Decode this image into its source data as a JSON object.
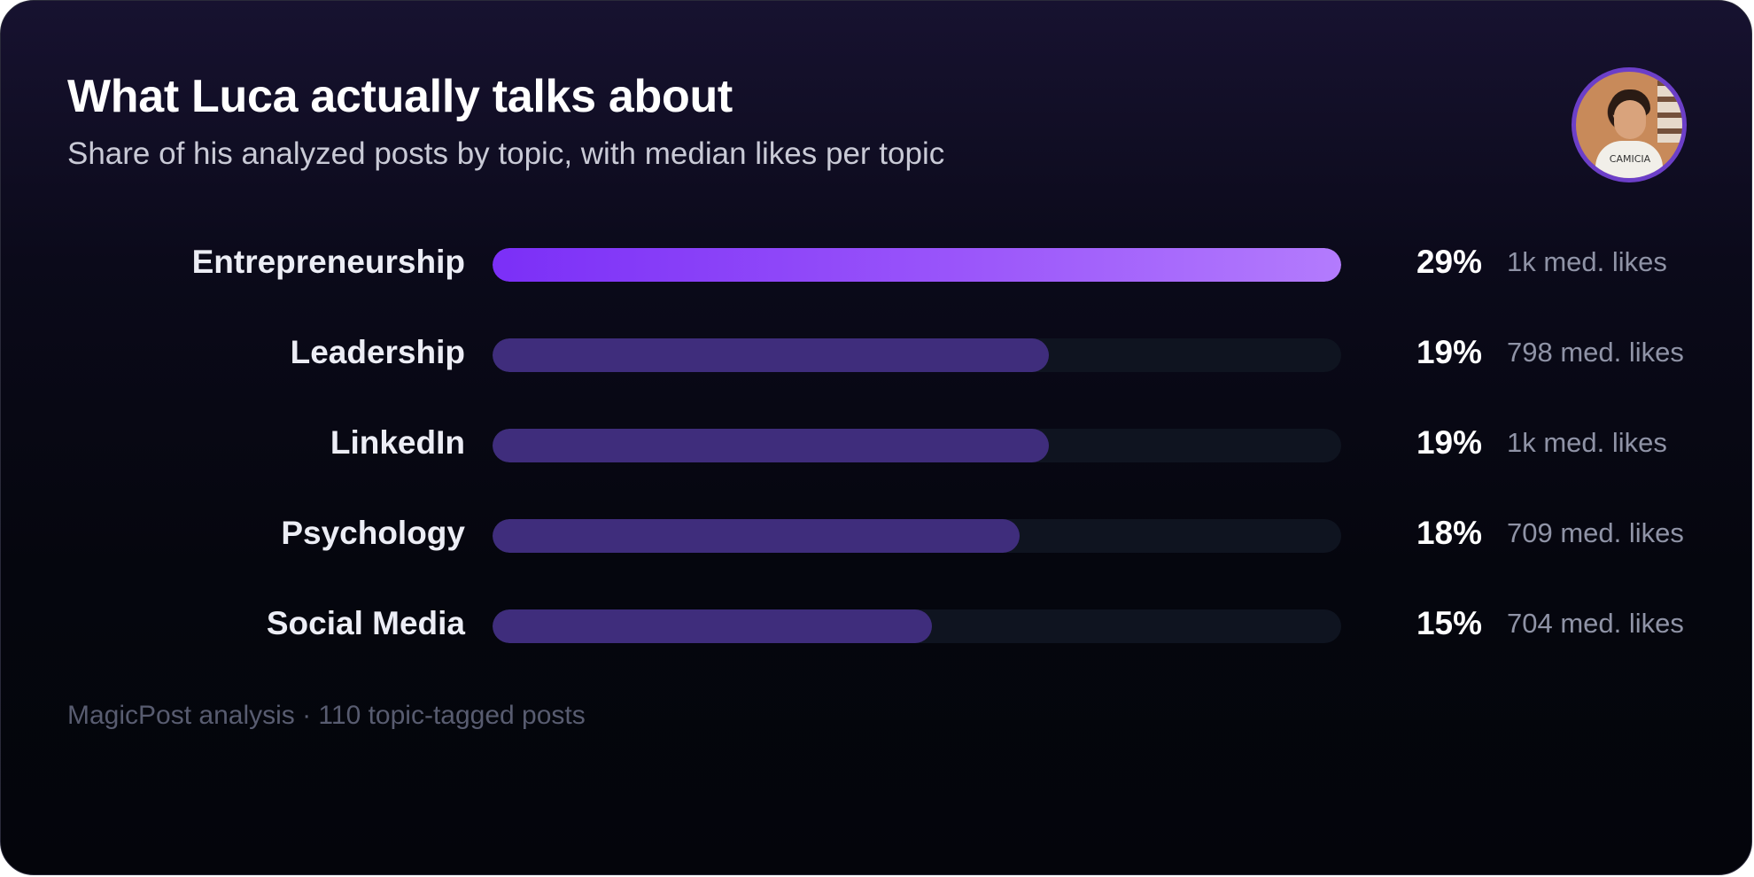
{
  "card": {
    "title": "What Luca actually talks about",
    "subtitle": "Share of his analyzed posts by topic, with median likes per topic",
    "footer": "MagicPost analysis · 110 topic-tagged posts",
    "avatar_shirt_text": "CAMICIA"
  },
  "colors": {
    "accent": "#8b3cf7",
    "accent_light": "#b37bfd",
    "bar": "#3f2d7c",
    "track": "#0f1420",
    "avatar_ring": "#6c3fc8"
  },
  "chart_data": {
    "type": "bar",
    "orientation": "horizontal",
    "title": "What Luca actually talks about",
    "subtitle": "Share of his analyzed posts by topic, with median likes per topic",
    "categories": [
      "Entrepreneurship",
      "Leadership",
      "LinkedIn",
      "Psychology",
      "Social Media"
    ],
    "values": [
      29,
      19,
      19,
      18,
      15
    ],
    "value_labels": [
      "29%",
      "19%",
      "19%",
      "18%",
      "15%"
    ],
    "likes_labels": [
      "1k med. likes",
      "798 med. likes",
      "1k med. likes",
      "709 med. likes",
      "704 med. likes"
    ],
    "xlim": [
      0,
      29
    ],
    "unit": "%",
    "grid": false,
    "legend": "none"
  }
}
